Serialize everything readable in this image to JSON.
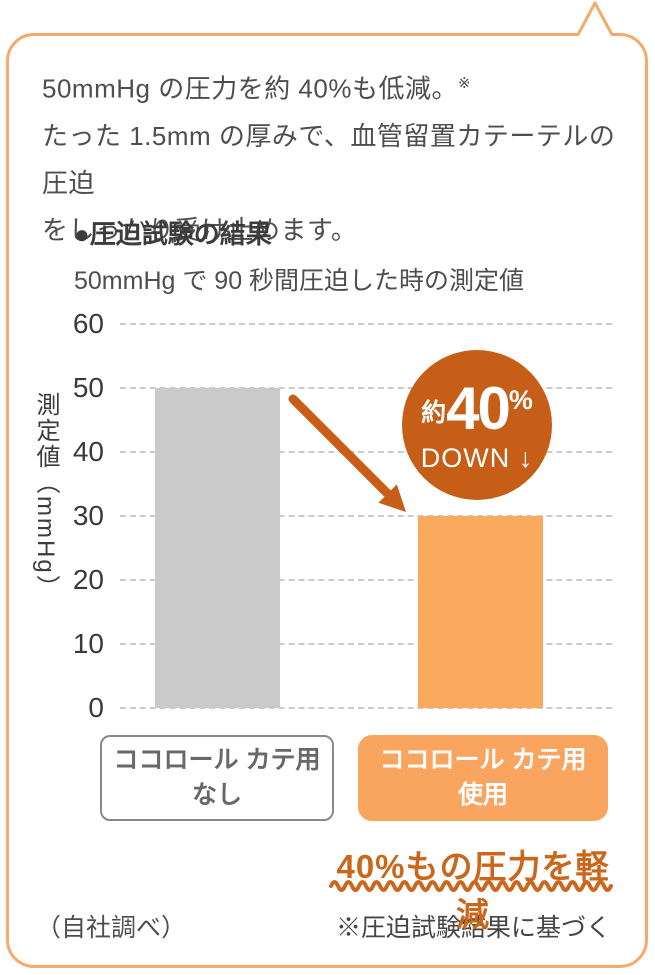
{
  "intro": {
    "line1": "50mmHg の圧力を約 40%も低減。",
    "line1_note": "※",
    "line2": "たった 1.5mm の厚みで、血管留置カテーテルの圧迫",
    "line3": "をしっかり受け止めます。"
  },
  "section": {
    "title": "●圧迫試験の結果",
    "subtitle": "50mmHg で 90 秒間圧迫した時の測定値"
  },
  "axis": {
    "ylabel": "測定値（mmHg）",
    "ticks": [
      "60",
      "50",
      "40",
      "30",
      "20",
      "10",
      "0"
    ]
  },
  "badge": {
    "prefix": "約",
    "value": "40",
    "unit": "%",
    "line2": "DOWN ↓"
  },
  "bar_labels": [
    {
      "line1": "ココロール カテ用",
      "line2": "なし"
    },
    {
      "line1": "ココロール カテ用",
      "line2": "使用"
    }
  ],
  "highlight": "40%もの圧力を軽減",
  "footer": {
    "left": "（自社調べ）",
    "right": "※圧迫試験結果に基づく"
  },
  "colors": {
    "bubble_border": "#F6A96C",
    "accent_dark": "#C65E17",
    "bar_gray": "#CACACA",
    "bar_orange": "#FBA95E",
    "label_box_orange": "#F9A55F",
    "highlight_text": "#CB671D",
    "text_dark": "#4E4E4E",
    "grid": "#CBCBCB"
  },
  "chart_data": {
    "type": "bar",
    "categories": [
      "ココロール カテ用 なし",
      "ココロール カテ用 使用"
    ],
    "values": [
      50,
      30
    ],
    "title": "圧迫試験の結果",
    "subtitle": "50mmHg で 90 秒間圧迫した時の測定値",
    "xlabel": "",
    "ylabel": "測定値（mmHg）",
    "ylim": [
      0,
      60
    ],
    "yticks": [
      0,
      10,
      20,
      30,
      40,
      50,
      60
    ],
    "grid": "horizontal-dashed",
    "legend": "none",
    "bar_colors": [
      "#CACACA",
      "#FBA95E"
    ],
    "annotations": [
      "約40% DOWN ↓",
      "40%もの圧力を軽減"
    ]
  }
}
